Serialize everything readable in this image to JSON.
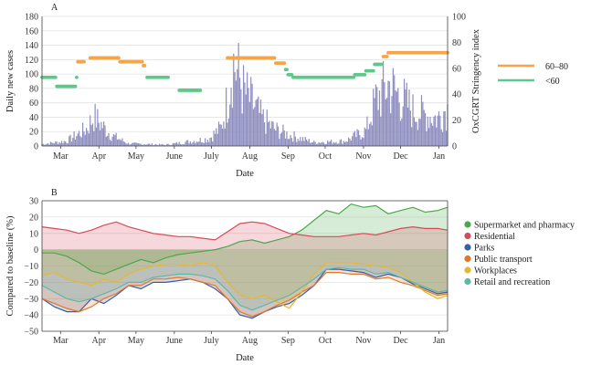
{
  "chart_data": [
    {
      "panel_label": "A",
      "type": "bar",
      "xlabel": "Date",
      "ylabel": "Daily new cases",
      "y2label": "OxCGRT Stringency index",
      "ylim": [
        0,
        180
      ],
      "y2lim": [
        0,
        100
      ],
      "yticks": [
        "0",
        "20",
        "40",
        "60",
        "80",
        "100",
        "120",
        "140",
        "160",
        "180"
      ],
      "y2ticks": [
        "0",
        "20",
        "40",
        "60",
        "80",
        "100"
      ],
      "xticks": [
        "Mar",
        "Apr",
        "May",
        "June",
        "July",
        "Aug",
        "Sep",
        "Oct",
        "Nov",
        "Dec",
        "Jan"
      ],
      "grid": true,
      "legend_position": "right",
      "bar_color": "#8f8fbf",
      "cases_peaks": [
        {
          "day": 0,
          "value": 3
        },
        {
          "day": 20,
          "value": 8
        },
        {
          "day": 36,
          "value": 28
        },
        {
          "day": 42,
          "value": 48
        },
        {
          "day": 48,
          "value": 35
        },
        {
          "day": 56,
          "value": 18
        },
        {
          "day": 70,
          "value": 4
        },
        {
          "day": 100,
          "value": 2
        },
        {
          "day": 115,
          "value": 6
        },
        {
          "day": 135,
          "value": 12
        },
        {
          "day": 145,
          "value": 30
        },
        {
          "day": 150,
          "value": 75
        },
        {
          "day": 154,
          "value": 140
        },
        {
          "day": 158,
          "value": 120
        },
        {
          "day": 163,
          "value": 90
        },
        {
          "day": 170,
          "value": 70
        },
        {
          "day": 178,
          "value": 45
        },
        {
          "day": 188,
          "value": 28
        },
        {
          "day": 200,
          "value": 18
        },
        {
          "day": 220,
          "value": 6
        },
        {
          "day": 245,
          "value": 8
        },
        {
          "day": 262,
          "value": 25
        },
        {
          "day": 270,
          "value": 75
        },
        {
          "day": 280,
          "value": 100
        },
        {
          "day": 290,
          "value": 80
        },
        {
          "day": 300,
          "value": 58
        },
        {
          "day": 312,
          "value": 50
        },
        {
          "day": 320,
          "value": 45
        },
        {
          "day": 326,
          "value": 60
        }
      ],
      "stringency_series": [
        {
          "name": "60–80",
          "color": "#f5a54a",
          "segments": [
            {
              "start": 29,
              "end": 34,
              "value": 65
            },
            {
              "start": 39,
              "end": 62,
              "value": 68
            },
            {
              "start": 63,
              "end": 81,
              "value": 65
            },
            {
              "start": 82,
              "end": 83,
              "value": 62
            },
            {
              "start": 150,
              "end": 188,
              "value": 68
            },
            {
              "start": 189,
              "end": 196,
              "value": 64
            },
            {
              "start": 276,
              "end": 279,
              "value": 69
            },
            {
              "start": 280,
              "end": 328,
              "value": 72
            }
          ]
        },
        {
          "name": "<60",
          "color": "#5cc98a",
          "segments": [
            {
              "start": 0,
              "end": 11,
              "value": 53
            },
            {
              "start": 12,
              "end": 27,
              "value": 46
            },
            {
              "start": 28,
              "end": 28,
              "value": 53
            },
            {
              "start": 85,
              "end": 102,
              "value": 53
            },
            {
              "start": 111,
              "end": 128,
              "value": 43
            },
            {
              "start": 197,
              "end": 198,
              "value": 59
            },
            {
              "start": 199,
              "end": 202,
              "value": 55
            },
            {
              "start": 203,
              "end": 252,
              "value": 53
            },
            {
              "start": 253,
              "end": 261,
              "value": 55
            },
            {
              "start": 262,
              "end": 268,
              "value": 58
            },
            {
              "start": 269,
              "end": 275,
              "value": 63
            }
          ]
        }
      ]
    },
    {
      "panel_label": "B",
      "type": "area",
      "xlabel": "Date",
      "ylabel": "Compared to baseline (%)",
      "ylim": [
        -50,
        30
      ],
      "yticks": [
        "30",
        "20",
        "10",
        "0",
        "−10",
        "−20",
        "−30",
        "−40",
        "−50"
      ],
      "xticks": [
        "Mar",
        "Apr",
        "May",
        "June",
        "July",
        "Aug",
        "Sep",
        "Oct",
        "Nov",
        "Dec",
        "Jan"
      ],
      "grid": true,
      "legend_position": "right",
      "series": [
        {
          "name": "Supermarket and pharmacy",
          "color": "#4aa84a",
          "points": [
            [
              0,
              -2
            ],
            [
              10,
              -2
            ],
            [
              20,
              -4
            ],
            [
              30,
              -8
            ],
            [
              40,
              -13
            ],
            [
              50,
              -15
            ],
            [
              60,
              -12
            ],
            [
              70,
              -9
            ],
            [
              80,
              -6
            ],
            [
              90,
              -8
            ],
            [
              100,
              -5
            ],
            [
              110,
              -3
            ],
            [
              120,
              -2
            ],
            [
              130,
              -1
            ],
            [
              140,
              0
            ],
            [
              150,
              2
            ],
            [
              160,
              5
            ],
            [
              170,
              6
            ],
            [
              180,
              4
            ],
            [
              190,
              6
            ],
            [
              200,
              8
            ],
            [
              210,
              12
            ],
            [
              220,
              18
            ],
            [
              230,
              24
            ],
            [
              240,
              22
            ],
            [
              250,
              28
            ],
            [
              260,
              26
            ],
            [
              270,
              27
            ],
            [
              280,
              22
            ],
            [
              290,
              24
            ],
            [
              300,
              26
            ],
            [
              310,
              23
            ],
            [
              320,
              24
            ],
            [
              328,
              26
            ]
          ]
        },
        {
          "name": "Residential",
          "color": "#d64a5c",
          "points": [
            [
              0,
              14
            ],
            [
              10,
              13
            ],
            [
              20,
              12
            ],
            [
              30,
              10
            ],
            [
              40,
              12
            ],
            [
              50,
              15
            ],
            [
              60,
              17
            ],
            [
              70,
              14
            ],
            [
              80,
              12
            ],
            [
              90,
              10
            ],
            [
              100,
              9
            ],
            [
              110,
              8
            ],
            [
              120,
              8
            ],
            [
              130,
              7
            ],
            [
              140,
              6
            ],
            [
              150,
              11
            ],
            [
              160,
              16
            ],
            [
              170,
              17
            ],
            [
              180,
              16
            ],
            [
              190,
              13
            ],
            [
              200,
              10
            ],
            [
              210,
              9
            ],
            [
              220,
              8
            ],
            [
              230,
              8
            ],
            [
              240,
              8
            ],
            [
              250,
              9
            ],
            [
              260,
              10
            ],
            [
              270,
              9
            ],
            [
              280,
              11
            ],
            [
              290,
              13
            ],
            [
              300,
              14
            ],
            [
              310,
              13
            ],
            [
              320,
              13
            ],
            [
              328,
              12
            ]
          ]
        },
        {
          "name": "Parks",
          "color": "#3a5ea0",
          "points": [
            [
              0,
              -30
            ],
            [
              10,
              -35
            ],
            [
              20,
              -38
            ],
            [
              30,
              -38
            ],
            [
              40,
              -30
            ],
            [
              50,
              -33
            ],
            [
              60,
              -28
            ],
            [
              70,
              -22
            ],
            [
              80,
              -24
            ],
            [
              90,
              -20
            ],
            [
              100,
              -20
            ],
            [
              110,
              -19
            ],
            [
              120,
              -18
            ],
            [
              130,
              -20
            ],
            [
              140,
              -24
            ],
            [
              150,
              -30
            ],
            [
              160,
              -40
            ],
            [
              170,
              -42
            ],
            [
              180,
              -38
            ],
            [
              190,
              -35
            ],
            [
              200,
              -33
            ],
            [
              210,
              -28
            ],
            [
              220,
              -22
            ],
            [
              230,
              -12
            ],
            [
              240,
              -12
            ],
            [
              250,
              -13
            ],
            [
              260,
              -14
            ],
            [
              270,
              -17
            ],
            [
              280,
              -15
            ],
            [
              290,
              -17
            ],
            [
              300,
              -21
            ],
            [
              310,
              -24
            ],
            [
              320,
              -27
            ],
            [
              328,
              -26
            ]
          ]
        },
        {
          "name": "Public transport",
          "color": "#e0772a",
          "points": [
            [
              0,
              -30
            ],
            [
              10,
              -33
            ],
            [
              20,
              -36
            ],
            [
              30,
              -38
            ],
            [
              40,
              -35
            ],
            [
              50,
              -30
            ],
            [
              60,
              -27
            ],
            [
              70,
              -22
            ],
            [
              80,
              -22
            ],
            [
              90,
              -18
            ],
            [
              100,
              -18
            ],
            [
              110,
              -17
            ],
            [
              120,
              -18
            ],
            [
              130,
              -20
            ],
            [
              140,
              -22
            ],
            [
              150,
              -30
            ],
            [
              160,
              -38
            ],
            [
              170,
              -41
            ],
            [
              180,
              -38
            ],
            [
              190,
              -34
            ],
            [
              200,
              -31
            ],
            [
              210,
              -26
            ],
            [
              220,
              -22
            ],
            [
              230,
              -14
            ],
            [
              240,
              -14
            ],
            [
              250,
              -15
            ],
            [
              260,
              -15
            ],
            [
              270,
              -18
            ],
            [
              280,
              -17
            ],
            [
              290,
              -20
            ],
            [
              300,
              -22
            ],
            [
              310,
              -25
            ],
            [
              320,
              -28
            ],
            [
              328,
              -27
            ]
          ]
        },
        {
          "name": "Workplaces",
          "color": "#e6b830",
          "points": [
            [
              0,
              -16
            ],
            [
              10,
              -14
            ],
            [
              20,
              -18
            ],
            [
              30,
              -20
            ],
            [
              40,
              -22
            ],
            [
              50,
              -18
            ],
            [
              60,
              -20
            ],
            [
              70,
              -15
            ],
            [
              80,
              -12
            ],
            [
              90,
              -10
            ],
            [
              100,
              -9
            ],
            [
              110,
              -9
            ],
            [
              120,
              -10
            ],
            [
              130,
              -8
            ],
            [
              140,
              -10
            ],
            [
              150,
              -20
            ],
            [
              160,
              -28
            ],
            [
              170,
              -30
            ],
            [
              180,
              -28
            ],
            [
              190,
              -32
            ],
            [
              200,
              -36
            ],
            [
              210,
              -26
            ],
            [
              220,
              -15
            ],
            [
              230,
              -8
            ],
            [
              240,
              -8
            ],
            [
              250,
              -8
            ],
            [
              260,
              -9
            ],
            [
              270,
              -10
            ],
            [
              280,
              -11
            ],
            [
              290,
              -14
            ],
            [
              300,
              -20
            ],
            [
              310,
              -26
            ],
            [
              320,
              -30
            ],
            [
              328,
              -28
            ]
          ]
        },
        {
          "name": "Retail and recreation",
          "color": "#5cb8a8",
          "points": [
            [
              0,
              -22
            ],
            [
              10,
              -26
            ],
            [
              20,
              -30
            ],
            [
              30,
              -32
            ],
            [
              40,
              -30
            ],
            [
              50,
              -27
            ],
            [
              60,
              -24
            ],
            [
              70,
              -20
            ],
            [
              80,
              -20
            ],
            [
              90,
              -17
            ],
            [
              100,
              -16
            ],
            [
              110,
              -15
            ],
            [
              120,
              -15
            ],
            [
              130,
              -16
            ],
            [
              140,
              -18
            ],
            [
              150,
              -25
            ],
            [
              160,
              -34
            ],
            [
              170,
              -37
            ],
            [
              180,
              -34
            ],
            [
              190,
              -31
            ],
            [
              200,
              -28
            ],
            [
              210,
              -23
            ],
            [
              220,
              -18
            ],
            [
              230,
              -12
            ],
            [
              240,
              -11
            ],
            [
              250,
              -12
            ],
            [
              260,
              -12
            ],
            [
              270,
              -15
            ],
            [
              280,
              -14
            ],
            [
              290,
              -17
            ],
            [
              300,
              -20
            ],
            [
              310,
              -23
            ],
            [
              320,
              -26
            ],
            [
              328,
              -25
            ]
          ]
        }
      ]
    }
  ]
}
